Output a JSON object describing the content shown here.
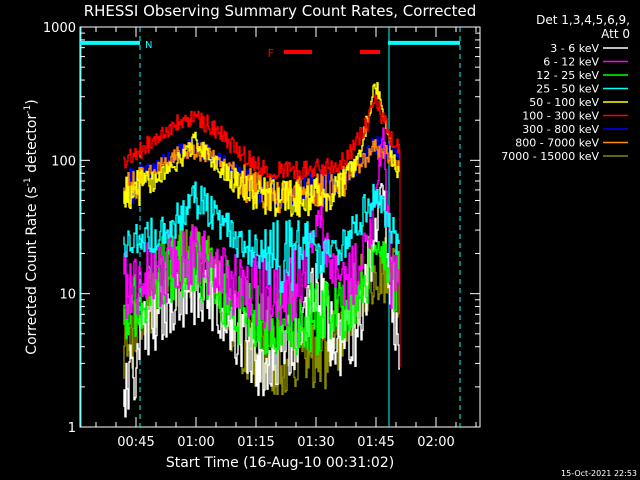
{
  "chart_data": {
    "type": "line",
    "title": "RHESSI Observing Summary Count Rates, Corrected",
    "xlabel": "Start Time (16-Aug-10 00:31:02)",
    "ylabel": "Corrected Count Rate (s",
    "ylabel_sup1": "-1",
    "ylabel_mid": " detector",
    "ylabel_sup2": "-1",
    "ylabel_end": ")",
    "yscale": "log",
    "ylim": [
      1,
      1000
    ],
    "y_ticks": [
      {
        "value": 1,
        "label": "1"
      },
      {
        "value": 10,
        "label": "10"
      },
      {
        "value": 100,
        "label": "100"
      },
      {
        "value": 1000,
        "label": "1000"
      }
    ],
    "xlim": [
      "00:31",
      "02:11"
    ],
    "x_ticks": [
      {
        "value": "00:45",
        "label": "00:45"
      },
      {
        "value": "01:00",
        "label": "01:00"
      },
      {
        "value": "01:15",
        "label": "01:15"
      },
      {
        "value": "01:30",
        "label": "01:30"
      },
      {
        "value": "01:45",
        "label": "01:45"
      },
      {
        "value": "02:00",
        "label": "02:00"
      }
    ],
    "legend": {
      "placement": "right",
      "header1": "Det 1,3,4,5,6,9,",
      "header2": "Att 0"
    },
    "data_start": "00:42",
    "data_end": "01:51",
    "series": [
      {
        "name": "3 - 6 keV",
        "color": "#ffffff",
        "x": [
          "00:42",
          "00:45",
          "00:48",
          "00:52",
          "00:56",
          "01:00",
          "01:04",
          "01:08",
          "01:12",
          "01:16",
          "01:20",
          "01:24",
          "01:27",
          "01:29",
          "01:31",
          "01:33",
          "01:36",
          "01:40",
          "01:43",
          "01:45",
          "01:47",
          "01:49",
          "01:51"
        ],
        "y": [
          1.5,
          3,
          6,
          8.5,
          10.5,
          11,
          10,
          7,
          4,
          3,
          3,
          4,
          5,
          8,
          10,
          6,
          4,
          5,
          13,
          30,
          60,
          8,
          5
        ]
      },
      {
        "name": "6 - 12 keV",
        "color": "#ff00ff",
        "x": [
          "00:42",
          "00:45",
          "00:48",
          "00:52",
          "00:56",
          "01:00",
          "01:04",
          "01:08",
          "01:12",
          "01:16",
          "01:20",
          "01:24",
          "01:27",
          "01:29",
          "01:31",
          "01:33",
          "01:36",
          "01:40",
          "01:43",
          "01:45",
          "01:46",
          "01:47",
          "01:49",
          "01:51"
        ],
        "y": [
          12,
          13,
          14,
          15,
          17,
          18,
          16,
          13,
          11,
          10.5,
          10,
          11,
          14,
          25,
          50,
          15,
          12,
          16,
          22,
          45,
          90,
          150,
          12,
          11
        ]
      },
      {
        "name": "12 - 25 keV",
        "color": "#00ff00",
        "x": [
          "00:42",
          "00:45",
          "00:48",
          "00:52",
          "00:56",
          "01:00",
          "01:04",
          "01:08",
          "01:12",
          "01:16",
          "01:20",
          "01:24",
          "01:28",
          "01:32",
          "01:36",
          "01:40",
          "01:43",
          "01:45",
          "01:47",
          "01:49",
          "01:51"
        ],
        "y": [
          7,
          9,
          12,
          15,
          17,
          17.5,
          14,
          10,
          7,
          6.5,
          6.5,
          6.5,
          6.5,
          6.5,
          7.5,
          11,
          16,
          25,
          20,
          12,
          11
        ]
      },
      {
        "name": "25 - 50 keV",
        "color": "#00ffff",
        "x": [
          "00:42",
          "00:45",
          "00:48",
          "00:52",
          "00:56",
          "01:00",
          "01:02",
          "01:04",
          "01:08",
          "01:12",
          "01:16",
          "01:20",
          "01:24",
          "01:28",
          "01:32",
          "01:36",
          "01:40",
          "01:43",
          "01:45",
          "01:47",
          "01:49",
          "01:51"
        ],
        "y": [
          22,
          24,
          26,
          30,
          38,
          50,
          48,
          40,
          30,
          23,
          20,
          19,
          19,
          19,
          20,
          23,
          30,
          45,
          60,
          42,
          30,
          24
        ]
      },
      {
        "name": "50 - 100 keV",
        "color": "#ffff00",
        "x": [
          "00:42",
          "00:45",
          "00:48",
          "00:52",
          "00:56",
          "01:00",
          "01:02",
          "01:04",
          "01:08",
          "01:12",
          "01:16",
          "01:20",
          "01:24",
          "01:28",
          "01:32",
          "01:36",
          "01:40",
          "01:43",
          "01:45",
          "01:47",
          "01:49",
          "01:51"
        ],
        "y": [
          55,
          60,
          68,
          80,
          100,
          140,
          120,
          100,
          78,
          63,
          55,
          52,
          52,
          52,
          55,
          62,
          90,
          200,
          380,
          250,
          110,
          75
        ]
      },
      {
        "name": "100 - 300 keV",
        "color": "#ff0000",
        "x": [
          "00:42",
          "00:45",
          "00:48",
          "00:52",
          "00:56",
          "01:00",
          "01:04",
          "01:08",
          "01:12",
          "01:16",
          "01:20",
          "01:24",
          "01:28",
          "01:32",
          "01:36",
          "01:40",
          "01:43",
          "01:45",
          "01:47",
          "01:49",
          "01:51"
        ],
        "y": [
          100,
          110,
          130,
          160,
          190,
          210,
          180,
          140,
          110,
          90,
          85,
          85,
          85,
          88,
          95,
          130,
          190,
          290,
          200,
          140,
          120
        ]
      },
      {
        "name": "300 - 800 keV",
        "color": "#0000ff",
        "x": [
          "00:42",
          "00:45",
          "00:48",
          "00:52",
          "00:56",
          "01:00",
          "01:04",
          "01:08",
          "01:12",
          "01:16",
          "01:20",
          "01:24",
          "01:28",
          "01:32",
          "01:36",
          "01:40",
          "01:43",
          "01:45",
          "01:47",
          "01:49",
          "01:51"
        ],
        "y": [
          60,
          68,
          80,
          98,
          115,
          125,
          112,
          90,
          72,
          62,
          60,
          60,
          60,
          62,
          70,
          90,
          115,
          130,
          125,
          115,
          105
        ]
      },
      {
        "name": "800 - 7000 keV",
        "color": "#ff8c00",
        "x": [
          "00:42",
          "00:45",
          "00:48",
          "00:52",
          "00:56",
          "01:00",
          "01:04",
          "01:08",
          "01:12",
          "01:16",
          "01:20",
          "01:24",
          "01:28",
          "01:32",
          "01:36",
          "01:40",
          "01:43",
          "01:45",
          "01:47",
          "01:49",
          "01:51"
        ],
        "y": [
          58,
          65,
          76,
          94,
          110,
          120,
          108,
          86,
          68,
          58,
          56,
          56,
          56,
          58,
          65,
          85,
          108,
          122,
          118,
          105,
          95
        ]
      },
      {
        "name": "7000 - 15000 keV",
        "color": "#8b8b00",
        "x": [
          "00:42",
          "00:45",
          "00:48",
          "00:52",
          "00:56",
          "01:00",
          "01:04",
          "01:08",
          "01:12",
          "01:16",
          "01:20",
          "01:24",
          "01:28",
          "01:32",
          "01:36",
          "01:40",
          "01:43",
          "01:45",
          "01:47",
          "01:49",
          "01:51"
        ],
        "y": [
          4,
          5,
          8,
          12,
          16,
          18,
          14,
          8,
          4.5,
          3.5,
          3.3,
          3.3,
          3.3,
          3.5,
          5,
          9,
          14,
          16,
          16,
          14,
          12
        ]
      }
    ],
    "annotations": {
      "night": {
        "label": "N",
        "color": "#00ffff",
        "segments": [
          [
            "00:31",
            "00:46"
          ],
          [
            "01:48",
            "02:06"
          ]
        ],
        "vertical_dashed": [
          "00:46",
          "02:06"
        ],
        "vertical_solid": [
          "00:31",
          "01:48"
        ],
        "level": 760
      },
      "flare": {
        "label": "F",
        "color": "#ff0000",
        "segments": [
          [
            "01:22",
            "01:29"
          ],
          [
            "01:41",
            "01:46"
          ]
        ],
        "level": 650
      }
    }
  },
  "footer_timestamp": "15-Oct-2021 22:53"
}
